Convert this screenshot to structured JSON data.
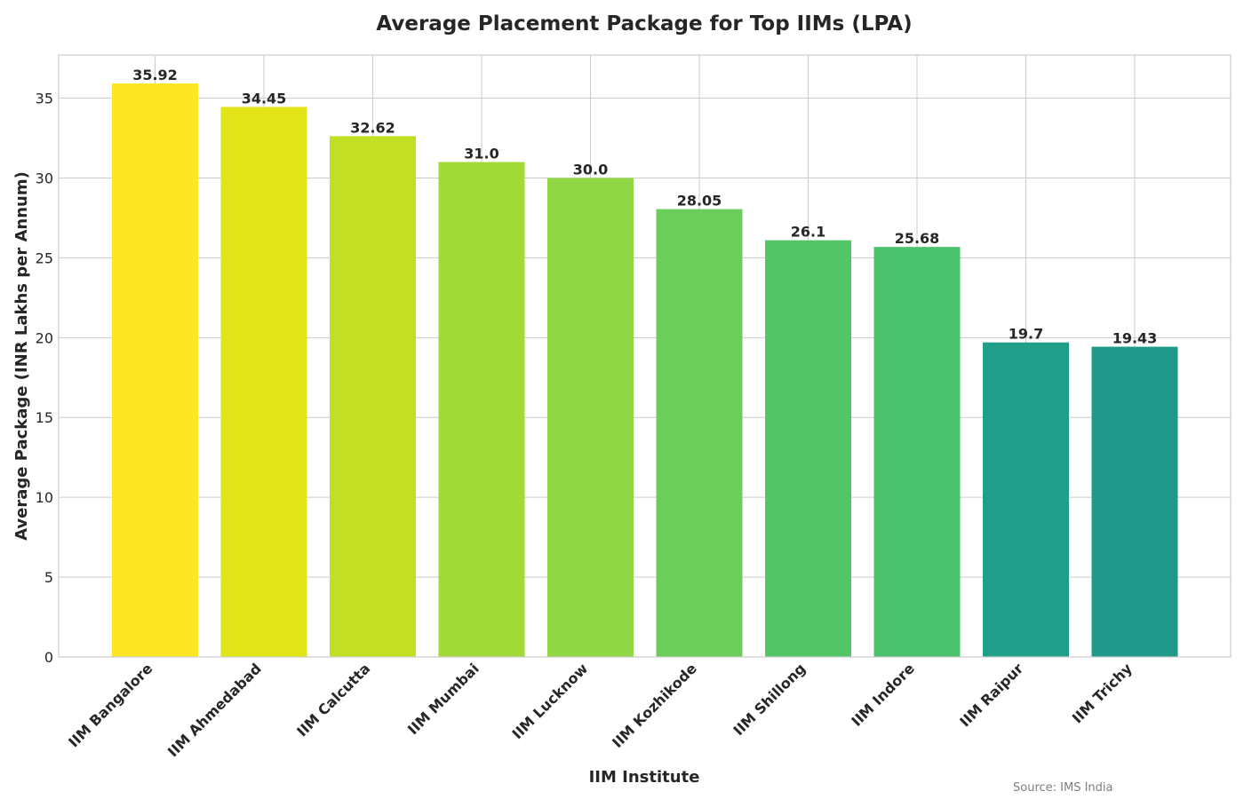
{
  "chart_data": {
    "type": "bar",
    "title": "Average Placement Package for Top IIMs (LPA)",
    "xlabel": "IIM Institute",
    "ylabel": "Average Package (INR Lakhs per Annum)",
    "categories": [
      "IIM Bangalore",
      "IIM Ahmedabad",
      "IIM Calcutta",
      "IIM Mumbai",
      "IIM Lucknow",
      "IIM Kozhikode",
      "IIM Shillong",
      "IIM Indore",
      "IIM Raipur",
      "IIM Trichy"
    ],
    "values": [
      35.92,
      34.45,
      32.62,
      31.0,
      30.0,
      28.05,
      26.1,
      25.68,
      19.7,
      19.43
    ],
    "value_labels": [
      "35.92",
      "34.45",
      "32.62",
      "31.0",
      "30.0",
      "28.05",
      "26.1",
      "25.68",
      "19.7",
      "19.43"
    ],
    "colors": [
      "#fde725",
      "#e2e418",
      "#c2df23",
      "#a2da37",
      "#90d743",
      "#6ccd5a",
      "#52c569",
      "#4ac16d",
      "#1f9e89",
      "#1f998a"
    ],
    "ylim": [
      0,
      37.7
    ],
    "yticks": [
      0,
      5,
      10,
      15,
      20,
      25,
      30,
      35
    ],
    "grid": true,
    "legend": "none"
  },
  "source_note": "Source: IMS India"
}
